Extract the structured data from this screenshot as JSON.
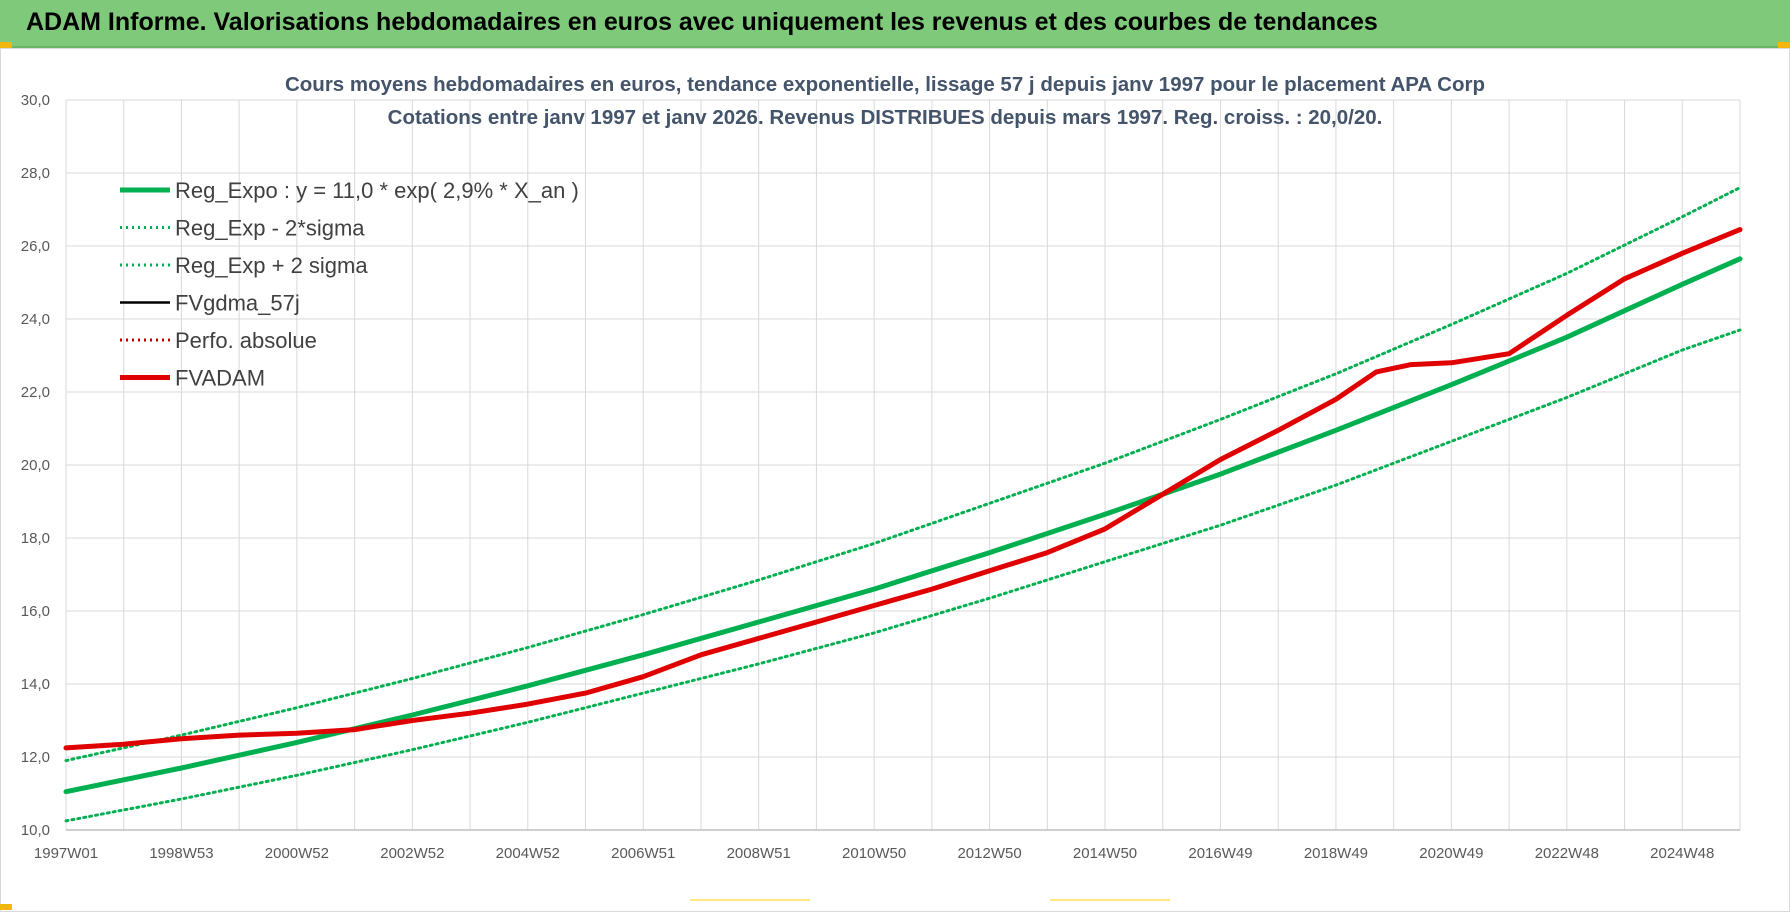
{
  "banner": {
    "title": "ADAM Informe. Valorisations hebdomadaires en euros avec uniquement les revenus et des courbes de tendances"
  },
  "colors": {
    "banner_bg": "#7fc97a",
    "trend_green": "#00b050",
    "fvadam_red": "#e00000",
    "perfo_red": "#c00000",
    "fvgdma_black": "#000000",
    "title_color": "#44546a"
  },
  "chart_data": {
    "type": "line",
    "title_line1": "Cours moyens hebdomadaires en euros, tendance exponentielle, lissage 57 j depuis janv 1997  pour le placement APA Corp",
    "title_line2": "Cotations entre janv 1997 et janv 2026. Revenus DISTRIBUES depuis mars 1997. Reg. croiss. : 20,0/20.",
    "ylim": [
      10,
      30
    ],
    "yticks": [
      "10,0",
      "12,0",
      "14,0",
      "16,0",
      "18,0",
      "20,0",
      "22,0",
      "24,0",
      "26,0",
      "28,0",
      "30,0"
    ],
    "xlim": [
      1997.0,
      2026.0
    ],
    "xtick_labels": [
      "1997W01",
      "1998W53",
      "2000W52",
      "2002W52",
      "2004W52",
      "2006W51",
      "2008W51",
      "2010W50",
      "2012W50",
      "2014W50",
      "2016W49",
      "2018W49",
      "2020W49",
      "2022W48",
      "2024W48"
    ],
    "grid": true,
    "legend_position": "top-left",
    "series": [
      {
        "name": "Reg_Expo : y = 11,0 * exp( 2,9% *  X_an )",
        "style": "solid-thick",
        "color": "#00b050",
        "x": [
          1997,
          1999,
          2001,
          2003,
          2005,
          2007,
          2009,
          2011,
          2013,
          2015,
          2017,
          2019,
          2021,
          2023,
          2025,
          2026
        ],
        "y": [
          11.05,
          11.7,
          12.4,
          13.15,
          13.95,
          14.8,
          15.7,
          16.6,
          17.6,
          18.65,
          19.75,
          20.95,
          22.2,
          23.5,
          24.95,
          25.65
        ]
      },
      {
        "name": "Reg_Exp - 2*sigma",
        "style": "dotted",
        "color": "#00b050",
        "x": [
          1997,
          1999,
          2001,
          2003,
          2005,
          2007,
          2009,
          2011,
          2013,
          2015,
          2017,
          2019,
          2021,
          2023,
          2025,
          2026
        ],
        "y": [
          10.25,
          10.85,
          11.5,
          12.2,
          12.95,
          13.75,
          14.55,
          15.4,
          16.35,
          17.35,
          18.35,
          19.45,
          20.65,
          21.85,
          23.15,
          23.7
        ]
      },
      {
        "name": "Reg_Exp + 2 sigma",
        "style": "dotted",
        "color": "#00b050",
        "x": [
          1997,
          1999,
          2001,
          2003,
          2005,
          2007,
          2009,
          2011,
          2013,
          2015,
          2017,
          2019,
          2021,
          2023,
          2025,
          2026
        ],
        "y": [
          11.9,
          12.6,
          13.35,
          14.15,
          15.0,
          15.9,
          16.85,
          17.85,
          18.95,
          20.05,
          21.25,
          22.5,
          23.85,
          25.25,
          26.8,
          27.6
        ]
      },
      {
        "name": "FVgdma_57j",
        "style": "solid",
        "color": "#000000",
        "x": [],
        "y": []
      },
      {
        "name": "Perfo. absolue",
        "style": "dotted",
        "color": "#c00000",
        "x": [],
        "y": []
      },
      {
        "name": "FVADAM",
        "style": "solid-thick",
        "color": "#e00000",
        "x": [
          1997.0,
          1998.0,
          1999.0,
          2000.0,
          2001.0,
          2002.0,
          2003.0,
          2004.0,
          2005.0,
          2006.0,
          2007.0,
          2008.0,
          2009.0,
          2010.0,
          2011.0,
          2012.0,
          2013.0,
          2014.0,
          2015.0,
          2016.0,
          2017.0,
          2018.0,
          2019.0,
          2019.7,
          2020.3,
          2021.0,
          2021.6,
          2022.0,
          2023.0,
          2024.0,
          2025.0,
          2026.0
        ],
        "y": [
          12.25,
          12.35,
          12.5,
          12.6,
          12.65,
          12.75,
          13.0,
          13.2,
          13.45,
          13.75,
          14.2,
          14.8,
          15.25,
          15.7,
          16.15,
          16.6,
          17.1,
          17.6,
          18.25,
          19.2,
          20.15,
          20.95,
          21.8,
          22.55,
          22.75,
          22.8,
          22.95,
          23.05,
          24.1,
          25.1,
          25.8,
          26.45
        ]
      }
    ]
  }
}
